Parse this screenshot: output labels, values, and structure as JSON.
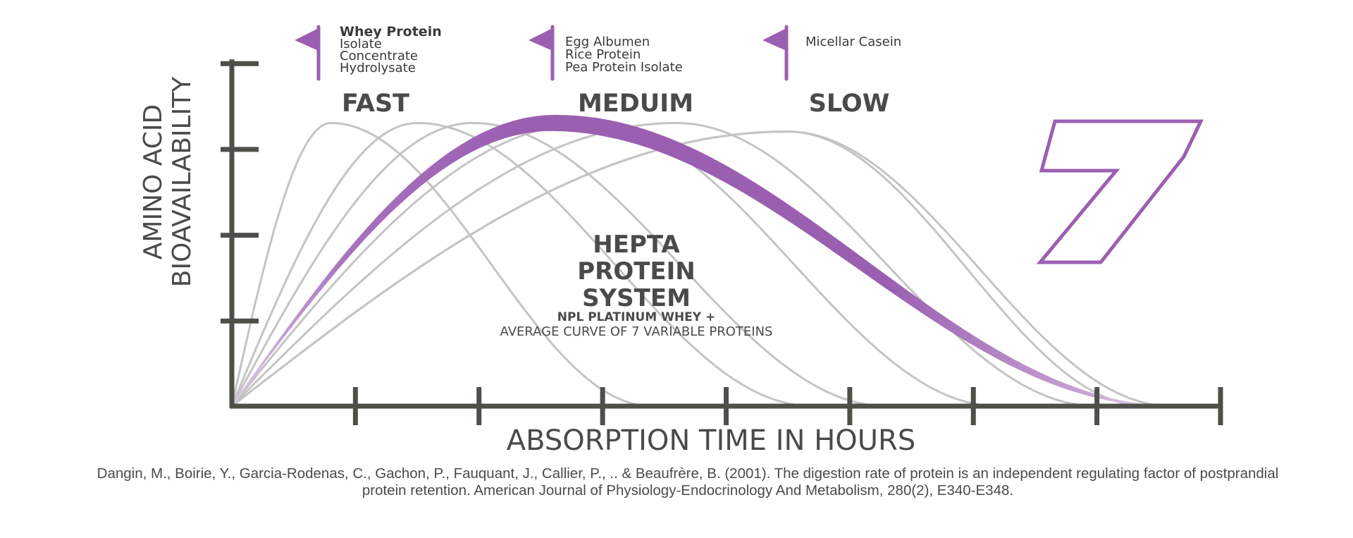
{
  "chart_data": {
    "type": "line",
    "title": "HEPTA PROTEIN SYSTEM",
    "subtitle_line1": "NPL PLATINUM WHEY +",
    "subtitle_line2": "AVERAGE CURVE OF 7 VARIABLE PROTEINS",
    "title_lines": [
      "HEPTA",
      "PROTEIN",
      "SYSTEM"
    ],
    "xlabel": "ABSORPTION TIME IN HOURS",
    "ylabel_line1": "AMINO ACID",
    "ylabel_line2": "BIOAVAILABILITY",
    "xlim": [
      0,
      8
    ],
    "ylim": [
      0,
      4
    ],
    "x_ticks": [
      1,
      2,
      3,
      4,
      5,
      6,
      7,
      8
    ],
    "y_ticks": [
      1,
      2,
      3,
      4
    ],
    "speed_labels": [
      "FAST",
      "MEDUIM",
      "SLOW"
    ],
    "logo_text": "7",
    "colors": {
      "axis": "#4f4f4a",
      "curve": "#c4c4c4",
      "highlight": "#9b5fb1",
      "highlight_light": "#ddc6e6",
      "text": "#4a4a47"
    },
    "legend_groups": [
      {
        "title": "Whey Protein",
        "items": [
          "Isolate",
          "Concentrate",
          "Hydrolysate"
        ]
      },
      {
        "title": "",
        "items": [
          "Egg Albumen",
          "Rice Protein",
          "Pea Protein Isolate"
        ]
      },
      {
        "title": "",
        "items": [
          "Micellar Casein"
        ]
      }
    ],
    "series": [
      {
        "peak_x": 0.8,
        "peak_y": 3.3,
        "end_x": 3.4
      },
      {
        "peak_x": 1.5,
        "peak_y": 3.3,
        "end_x": 4.7
      },
      {
        "peak_x": 1.95,
        "peak_y": 3.3,
        "end_x": 5.3
      },
      {
        "peak_x": 2.9,
        "peak_y": 3.3,
        "end_x": 6.2
      },
      {
        "peak_x": 3.6,
        "peak_y": 3.3,
        "end_x": 7.0
      },
      {
        "peak_x": 4.5,
        "peak_y": 3.2,
        "end_x": 7.4
      },
      {
        "peak_x": 4.5,
        "peak_y": 3.2,
        "end_x": 7.6
      }
    ],
    "highlight_series": {
      "peak_x": 2.6,
      "peak_y": 3.3,
      "end_x": 7.6
    }
  },
  "citation": {
    "line1": "Dangin, M., Boirie, Y., Garcia-Rodenas, C., Gachon, P., Fauquant, J., Callier, P., .. & Beaufrère, B. (2001). The digestion rate of protein is an independent regulating factor of postprandial",
    "line2": "protein retention. American Journal of Physiology-Endocrinology And Metabolism, 280(2), E340-E348."
  }
}
